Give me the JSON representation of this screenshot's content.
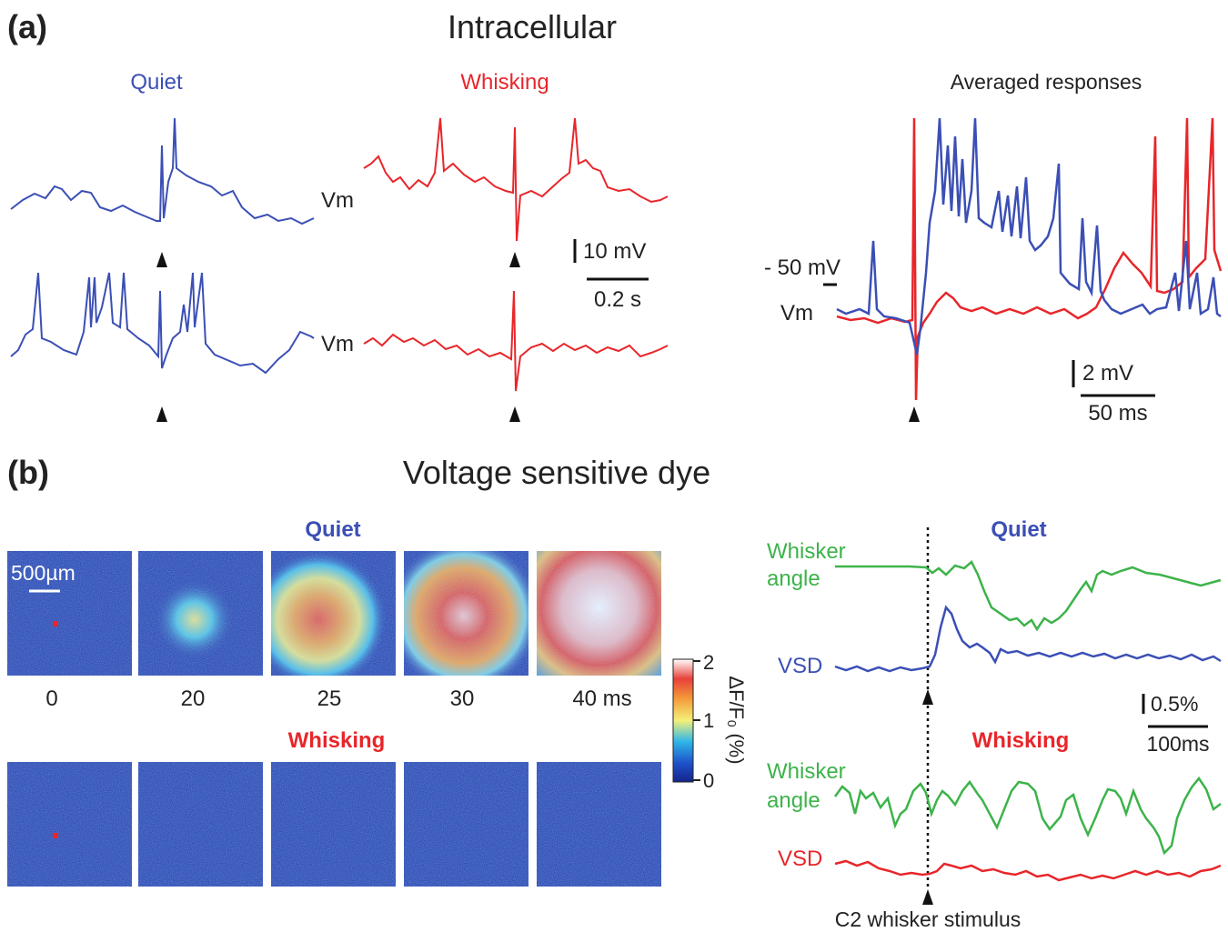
{
  "panel_a": {
    "label": "(a)",
    "title": "Intracellular",
    "quiet_label": "Quiet",
    "whisking_label": "Whisking",
    "vm_label": "Vm",
    "scale_voltage": "10 mV",
    "scale_time": "0.2 s",
    "averaged_title": "Averaged responses",
    "avg_vm_level": "- 50 mV",
    "avg_vm_label": "Vm",
    "avg_scale_voltage": "2 mV",
    "avg_scale_time": "50 ms"
  },
  "panel_b": {
    "label": "(b)",
    "title": "Voltage sensitive dye",
    "quiet_label": "Quiet",
    "whisking_label": "Whisking",
    "scale_bar": "500µm",
    "times": [
      "0",
      "20",
      "25",
      "30",
      "40 ms"
    ],
    "colorbar_label": "ΔF/F₀ (%)",
    "colorbar_ticks": [
      "2",
      "1",
      "0"
    ],
    "trace_quiet_label": "Quiet",
    "trace_whisking_label": "Whisking",
    "whisker_angle_label": [
      "Whisker",
      "angle"
    ],
    "vsd_label": "VSD",
    "trace_scale_percent": "0.5%",
    "trace_scale_time": "100ms",
    "stimulus_label": "C2 whisker stimulus"
  },
  "colors": {
    "quiet": "#3b4fb5",
    "whisking": "#e8262a",
    "whisker_angle": "#3db34a",
    "text": "#222222"
  },
  "vsd_maps": {
    "quiet_activation_peak": [
      0,
      0.45,
      1.1,
      1.7,
      2.0
    ],
    "whisking_activation_peak": [
      0,
      0.05,
      0.05,
      0.05,
      0.05
    ],
    "colorbar_range": [
      0,
      2
    ]
  }
}
